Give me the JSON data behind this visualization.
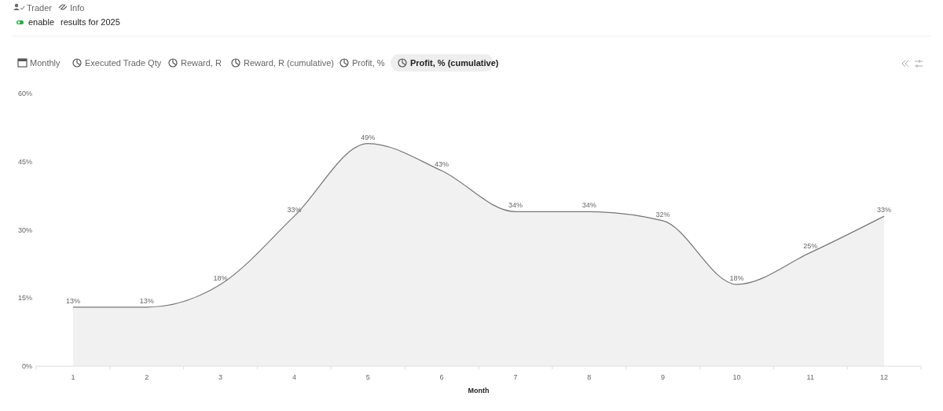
{
  "chart_data": {
    "type": "area",
    "xlabel": "Month",
    "categories": [
      "1",
      "2",
      "3",
      "4",
      "5",
      "6",
      "7",
      "8",
      "9",
      "10",
      "11",
      "12"
    ],
    "series": [
      {
        "color": "#777777",
        "values": [
          13,
          13,
          18,
          33,
          49,
          43,
          34,
          34,
          32,
          18,
          25,
          33
        ]
      }
    ],
    "ylim": [
      0,
      60
    ],
    "yticks": [
      {
        "value": 0,
        "label": "0%"
      },
      {
        "value": 15,
        "label": "15%"
      },
      {
        "value": 30,
        "label": "30%"
      },
      {
        "value": 45,
        "label": "45%"
      },
      {
        "value": 60,
        "label": "60%"
      }
    ],
    "value_labels": [
      "13%",
      "13%",
      "18%",
      "33%",
      "49%",
      "43%",
      "34%",
      "34%",
      "32%",
      "18%",
      "25%",
      "33%"
    ],
    "grid": false,
    "marker": "none",
    "annotations": [
      "Trader",
      "Info",
      "enable",
      "results for 2025",
      "Monthly",
      "Executed Trade Qty",
      "Reward, R",
      "Reward, R (cumulative)",
      "Profit, %",
      "Profit, % (cumulative)"
    ]
  }
}
